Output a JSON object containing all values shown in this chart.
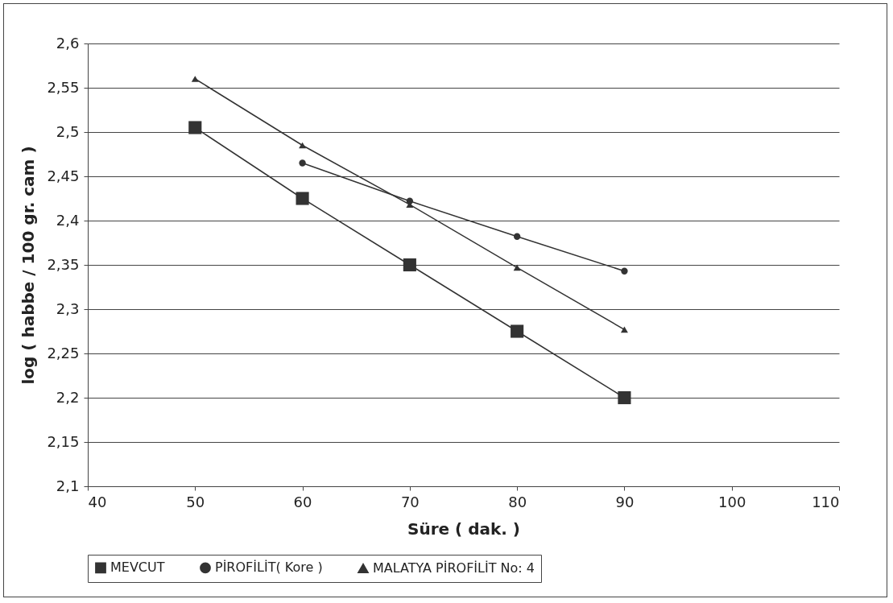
{
  "chart_data": {
    "type": "line",
    "xlabel": "Süre ( dak. )",
    "ylabel": "log ( habbe / 100 gr. cam )",
    "x": [
      50,
      60,
      70,
      80,
      90
    ],
    "series": [
      {
        "name": "MEVCUT",
        "color": "#333333",
        "marker": "square",
        "values": [
          2.505,
          2.425,
          2.35,
          2.275,
          2.2
        ]
      },
      {
        "name": "PİROFİLİT( Kore )",
        "color": "#333333",
        "marker": "circle",
        "values": [
          null,
          2.465,
          2.422,
          2.382,
          2.343
        ]
      },
      {
        "name": "MALATYA PİROFİLİT No: 4",
        "color": "#333333",
        "marker": "triangle",
        "values": [
          2.56,
          2.485,
          2.418,
          2.347,
          2.277
        ]
      }
    ],
    "xlim": [
      40,
      110
    ],
    "xticks": [
      40,
      50,
      60,
      70,
      80,
      90,
      100,
      110
    ],
    "ylim": [
      2.1,
      2.6
    ],
    "yticks": [
      {
        "value": 2.1,
        "label": "2,1"
      },
      {
        "value": 2.15,
        "label": "2,15"
      },
      {
        "value": 2.2,
        "label": "2,2"
      },
      {
        "value": 2.25,
        "label": "2,25"
      },
      {
        "value": 2.3,
        "label": "2,3"
      },
      {
        "value": 2.35,
        "label": "2,35"
      },
      {
        "value": 2.4,
        "label": "2,4"
      },
      {
        "value": 2.45,
        "label": "2,45"
      },
      {
        "value": 2.5,
        "label": "2,5"
      },
      {
        "value": 2.55,
        "label": "2,55"
      },
      {
        "value": 2.6,
        "label": "2,6"
      }
    ],
    "grid": "y",
    "legend": "bottom",
    "line_style": "solid"
  }
}
